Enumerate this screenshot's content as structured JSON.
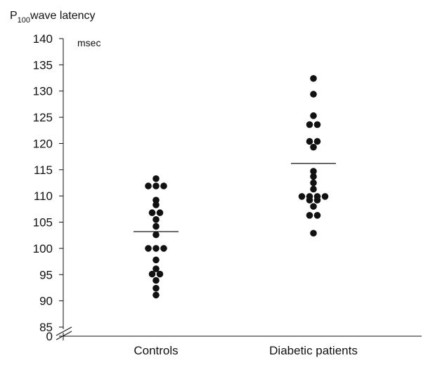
{
  "chart_data": {
    "type": "scatter",
    "title": {
      "prefix": "P",
      "subscript": "100",
      "suffix": "wave latency"
    },
    "unit_label": "msec",
    "xlabel": "",
    "ylabel": "",
    "categories": [
      "Controls",
      "Diabetic patients"
    ],
    "y_ticks": [
      "140",
      "135",
      "130",
      "125",
      "120",
      "115",
      "110",
      "105",
      "100",
      "95",
      "90",
      "85",
      "0"
    ],
    "ylim": [
      85,
      140
    ],
    "axis_break": "between 0 and 85",
    "grid": false,
    "legend": "none",
    "series": [
      {
        "category": "Controls",
        "mean": 103.2,
        "points": [
          {
            "offset": 0,
            "y": 113.3
          },
          {
            "offset": -1,
            "y": 111.9
          },
          {
            "offset": 0,
            "y": 111.9
          },
          {
            "offset": 1,
            "y": 111.9
          },
          {
            "offset": 0,
            "y": 109.2
          },
          {
            "offset": 0,
            "y": 108.3
          },
          {
            "offset": -0.5,
            "y": 106.8
          },
          {
            "offset": 0.5,
            "y": 106.8
          },
          {
            "offset": 0,
            "y": 105.5
          },
          {
            "offset": 0,
            "y": 104.2
          },
          {
            "offset": 0,
            "y": 102.6
          },
          {
            "offset": -1,
            "y": 100.0
          },
          {
            "offset": 0,
            "y": 100.0
          },
          {
            "offset": 1,
            "y": 100.0
          },
          {
            "offset": 0,
            "y": 97.8
          },
          {
            "offset": 0,
            "y": 96.1
          },
          {
            "offset": -0.5,
            "y": 95.1
          },
          {
            "offset": 0.5,
            "y": 95.1
          },
          {
            "offset": 0,
            "y": 93.9
          },
          {
            "offset": 0,
            "y": 92.4
          },
          {
            "offset": 0,
            "y": 91.1
          }
        ]
      },
      {
        "category": "Diabetic patients",
        "mean": 116.2,
        "points": [
          {
            "offset": 0,
            "y": 132.4
          },
          {
            "offset": 0,
            "y": 129.4
          },
          {
            "offset": 0,
            "y": 125.3
          },
          {
            "offset": -0.5,
            "y": 123.6
          },
          {
            "offset": 0.5,
            "y": 123.6
          },
          {
            "offset": -0.5,
            "y": 120.4
          },
          {
            "offset": 0.5,
            "y": 120.4
          },
          {
            "offset": 0,
            "y": 119.3
          },
          {
            "offset": 0,
            "y": 114.7
          },
          {
            "offset": 0,
            "y": 113.7
          },
          {
            "offset": 0,
            "y": 112.5
          },
          {
            "offset": 0,
            "y": 111.3
          },
          {
            "offset": -1.5,
            "y": 109.9
          },
          {
            "offset": -0.5,
            "y": 109.9
          },
          {
            "offset": 0.5,
            "y": 109.9
          },
          {
            "offset": 1.5,
            "y": 109.9
          },
          {
            "offset": -0.5,
            "y": 109.2
          },
          {
            "offset": 0.5,
            "y": 109.2
          },
          {
            "offset": 0,
            "y": 108.0
          },
          {
            "offset": -0.5,
            "y": 106.3
          },
          {
            "offset": 0.5,
            "y": 106.3
          },
          {
            "offset": 0,
            "y": 102.9
          }
        ]
      }
    ]
  }
}
